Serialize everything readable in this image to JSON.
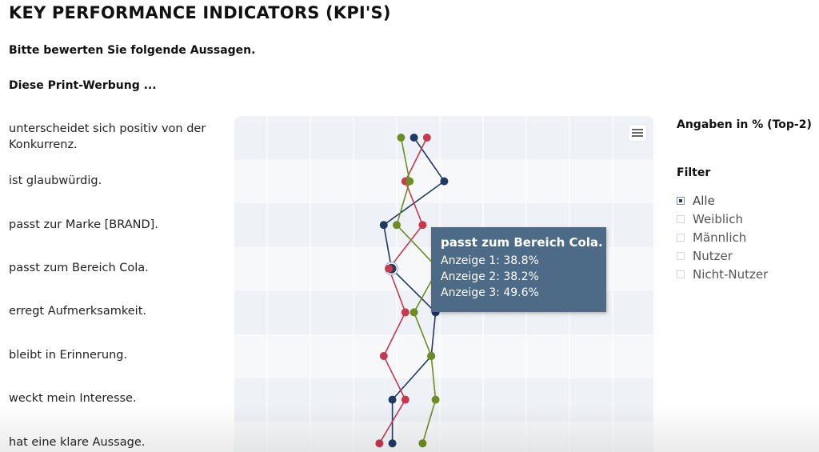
{
  "page": {
    "title": "KEY PERFORMANCE INDICATORS (KPI'S)",
    "subtitle": "Bitte bewerten Sie folgende Aussagen.",
    "intro": "Diese Print-Werbung ..."
  },
  "side": {
    "unit_label": "Angaben in % (Top-2)",
    "filter_title": "Filter",
    "filters": [
      {
        "label": "Alle",
        "checked": true
      },
      {
        "label": "Weiblich",
        "checked": false
      },
      {
        "label": "Männlich",
        "checked": false
      },
      {
        "label": "Nutzer",
        "checked": false
      },
      {
        "label": "Nicht-Nutzer",
        "checked": false
      }
    ]
  },
  "tooltip": {
    "title": "passt zum Bereich Cola.",
    "lines": [
      "Anzeige 1: 38.8%",
      "Anzeige 2: 38.2%",
      "Anzeige 3: 49.6%"
    ]
  },
  "colors": {
    "series_1": "#1f3a64",
    "series_2": "#c8394f",
    "series_3": "#6b8e23",
    "band": "#eef1f5",
    "grid": "#ffffff",
    "tooltip_bg": "#4d6a87"
  },
  "chart_data": {
    "type": "line",
    "orientation": "horizontal",
    "categories": [
      "unterscheidet sich positiv von der Konkurrenz.",
      "ist glaubwürdig.",
      "passt zur Marke [BRAND].",
      "passt zum Bereich Cola.",
      "erregt Aufmerksamkeit.",
      "bleibt in Erinnerung.",
      "weckt mein Interesse.",
      "hat eine klare Aussage."
    ],
    "xlim": [
      0,
      100
    ],
    "grid": true,
    "legend": "none",
    "series": [
      {
        "values": [
          44,
          51,
          37,
          38.8,
          49,
          48,
          39,
          39
        ],
        "color_key": "series_1"
      },
      {
        "values": [
          47,
          42,
          46,
          38.2,
          42,
          37,
          42,
          36
        ],
        "color_key": "series_2"
      },
      {
        "values": [
          41,
          43,
          40,
          49.6,
          44,
          48,
          49,
          46
        ],
        "color_key": "series_3"
      }
    ],
    "highlight_category": 3
  }
}
